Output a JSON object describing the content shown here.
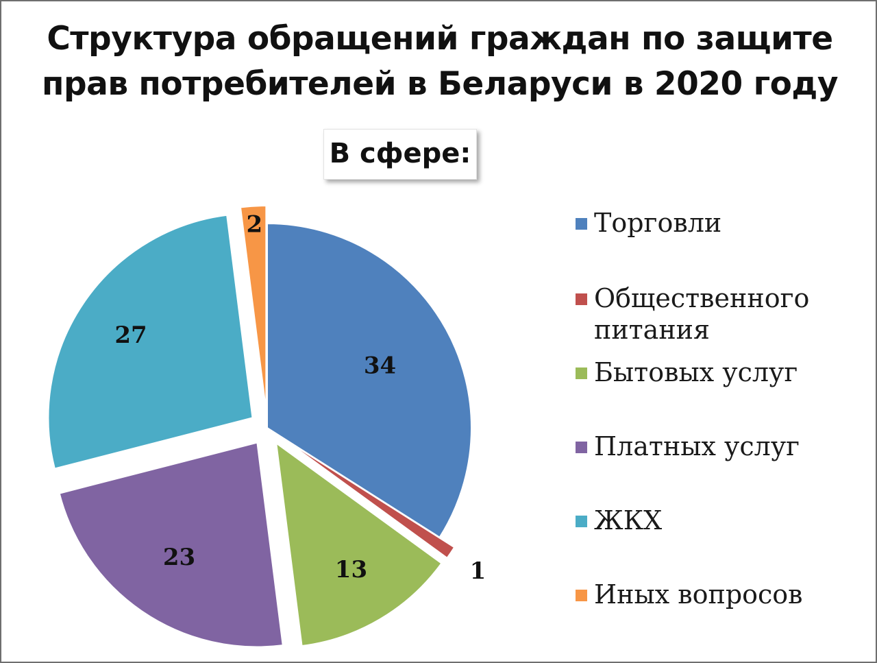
{
  "chart_data": {
    "type": "pie",
    "title_lines": [
      "Структура обращений граждан по защите",
      "прав потребителей в Беларуси в 2020 году"
    ],
    "subtitle": "В сфере:",
    "legend_position": "right",
    "slices": [
      {
        "name": "Торговли",
        "value": 34,
        "label": "34",
        "color": "#4f81bd",
        "exploded": false
      },
      {
        "name": "Общественного\nпитания",
        "value": 1,
        "label": "1",
        "color": "#c0504d",
        "exploded": true
      },
      {
        "name": "Бытовых услуг",
        "value": 13,
        "label": "13",
        "color": "#9bbb59",
        "exploded": true
      },
      {
        "name": "Платных услуг",
        "value": 23,
        "label": "23",
        "color": "#8064a2",
        "exploded": true
      },
      {
        "name": "ЖКХ",
        "value": 27,
        "label": "27",
        "color": "#4bacc6",
        "exploded": true
      },
      {
        "name": "Иных вопросов",
        "value": 2,
        "label": "2",
        "color": "#f79646",
        "exploded": true
      }
    ]
  }
}
